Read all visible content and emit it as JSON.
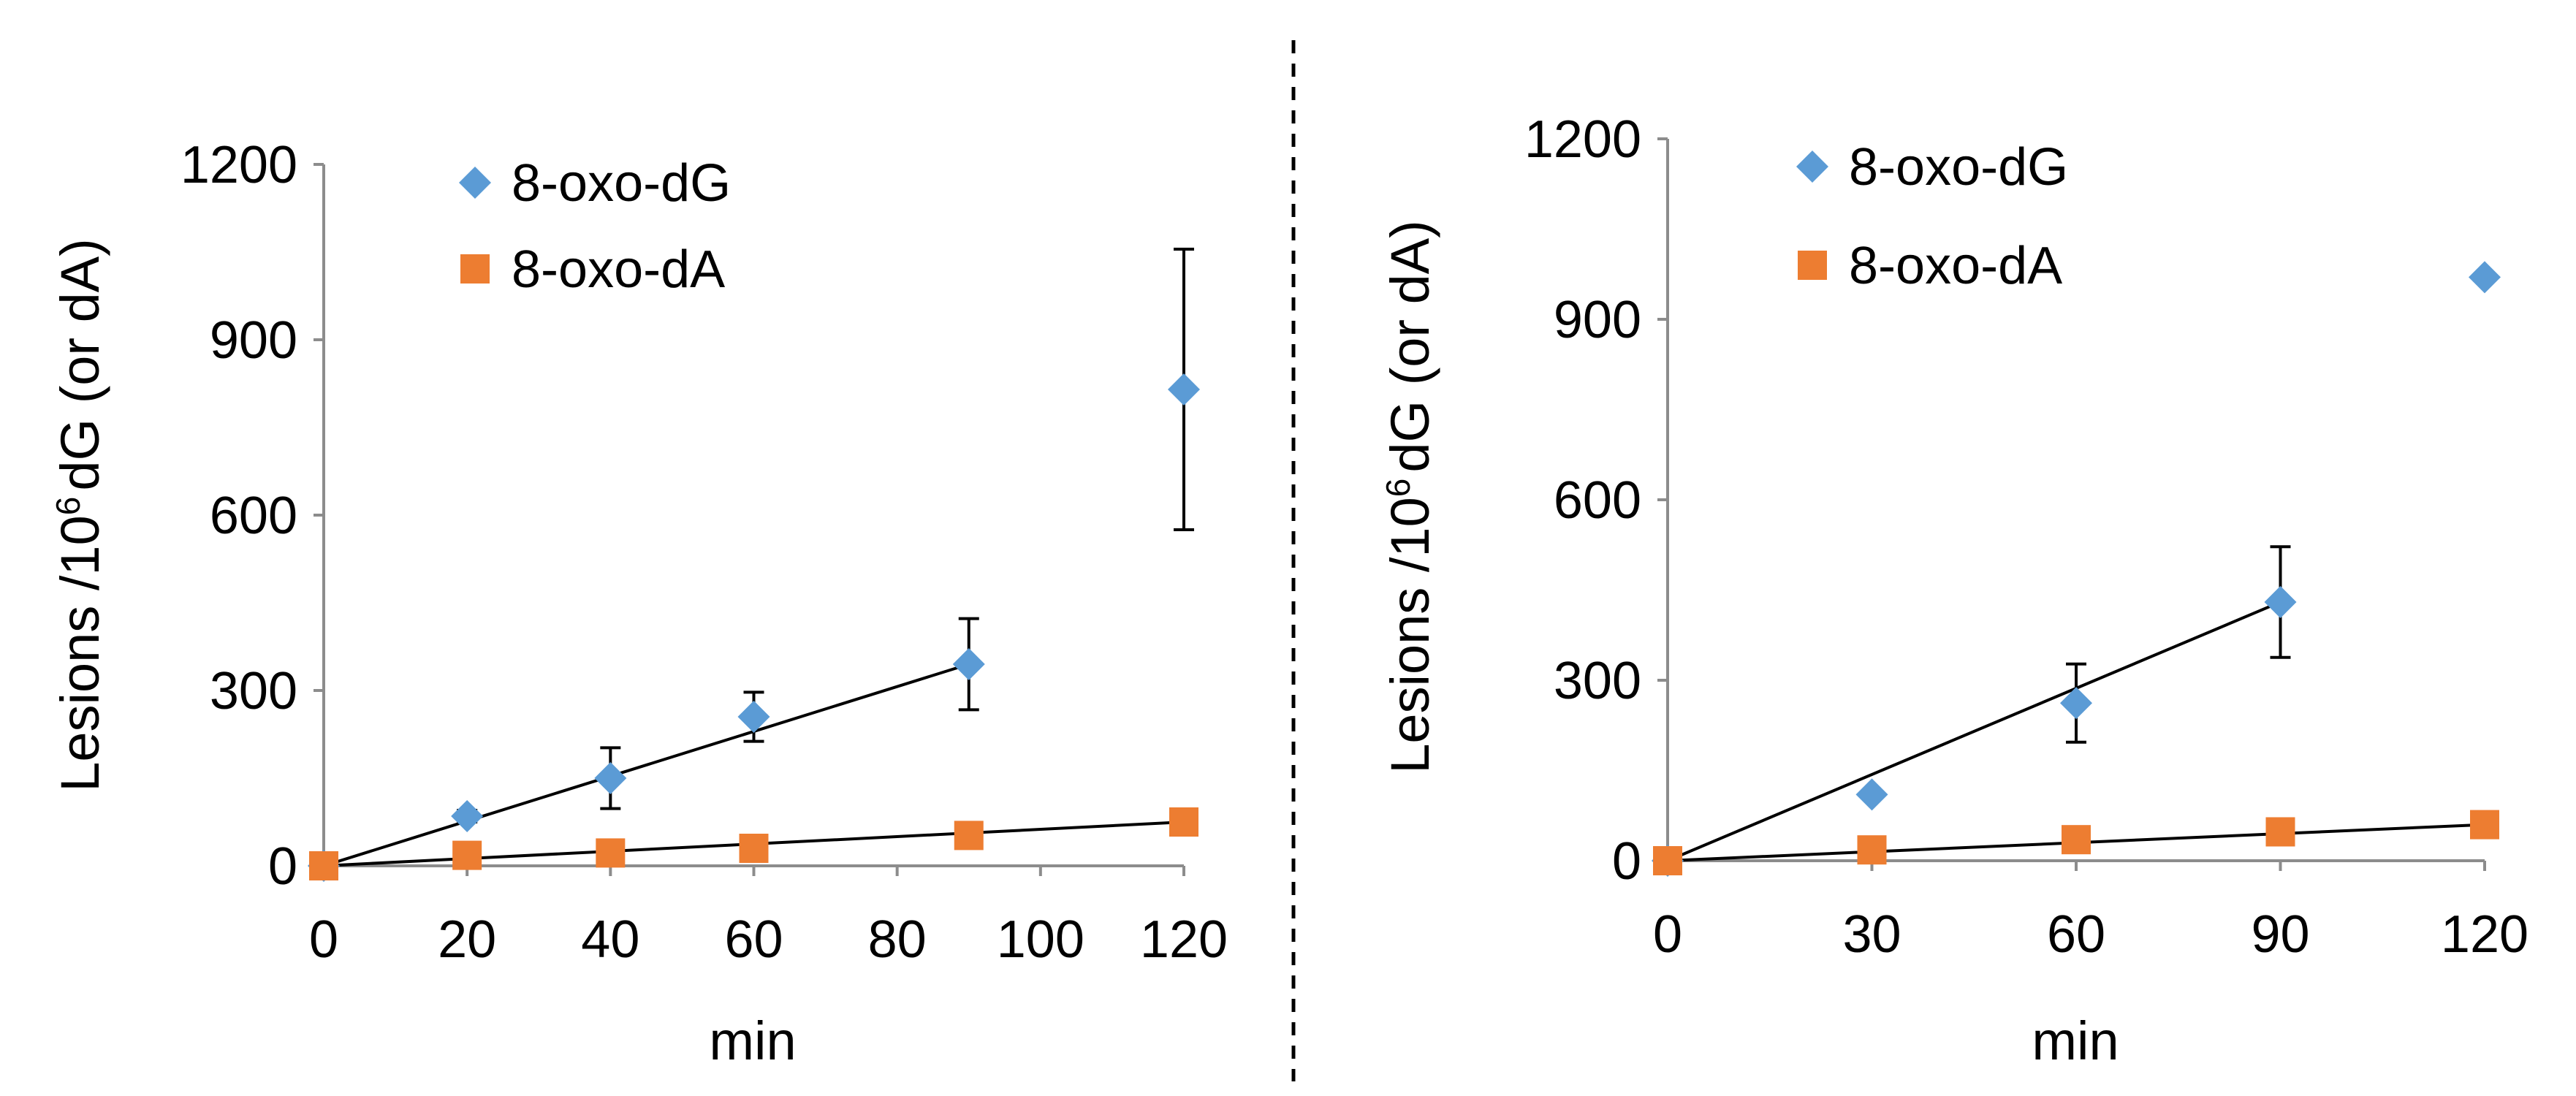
{
  "chart_data": [
    {
      "type": "scatter",
      "ylabel": "Lesions /10⁶ dG (or dA)",
      "ylabel_main": "Lesions /10",
      "ylabel_sup": "6",
      "ylabel_rest": "dG (or dA)",
      "xlabel": "min",
      "xlim": [
        0,
        120
      ],
      "ylim": [
        0,
        1200
      ],
      "xticks": [
        0,
        20,
        40,
        60,
        80,
        100,
        120
      ],
      "xtick_labels": [
        "0",
        "20",
        "40",
        "60",
        "80",
        "100",
        "120"
      ],
      "yticks": [
        0,
        300,
        600,
        900,
        1200
      ],
      "ytick_labels": [
        "0",
        "300",
        "600",
        "900",
        "1200"
      ],
      "legend_position": "top-left",
      "series": [
        {
          "name": "8-oxo-dG",
          "marker": "diamond",
          "color": "#5b9bd5",
          "x": [
            0,
            20,
            40,
            60,
            90,
            120
          ],
          "y": [
            0,
            85,
            150,
            255,
            345,
            815
          ],
          "err": [
            0,
            10,
            52,
            42,
            78,
            240
          ],
          "trend": {
            "x": [
              0,
              90
            ],
            "y": [
              0,
              345
            ]
          }
        },
        {
          "name": "8-oxo-dA",
          "marker": "square",
          "color": "#ed7d31",
          "x": [
            0,
            20,
            40,
            60,
            90,
            120
          ],
          "y": [
            0,
            18,
            22,
            30,
            52,
            75
          ],
          "err": [
            0,
            0,
            0,
            0,
            0,
            0
          ],
          "trend": {
            "x": [
              0,
              120
            ],
            "y": [
              0,
              75
            ]
          }
        }
      ]
    },
    {
      "type": "scatter",
      "ylabel": "Lesions /10⁶ dG (or dA)",
      "ylabel_main": "Lesions /10",
      "ylabel_sup": "6",
      "ylabel_rest": "dG (or dA)",
      "xlabel": "min",
      "xlim": [
        0,
        120
      ],
      "ylim": [
        0,
        1200
      ],
      "xticks": [
        0,
        30,
        60,
        90,
        120
      ],
      "xtick_labels": [
        "0",
        "30",
        "60",
        "90",
        "120"
      ],
      "yticks": [
        0,
        300,
        600,
        900,
        1200
      ],
      "ytick_labels": [
        "0",
        "300",
        "600",
        "900",
        "1200"
      ],
      "legend_position": "top-left",
      "series": [
        {
          "name": "8-oxo-dG",
          "marker": "diamond",
          "color": "#5b9bd5",
          "x": [
            0,
            30,
            60,
            90,
            120
          ],
          "y": [
            0,
            110,
            262,
            430,
            970
          ],
          "err": [
            0,
            0,
            65,
            92,
            0
          ],
          "trend": {
            "x": [
              0,
              90
            ],
            "y": [
              0,
              430
            ]
          }
        },
        {
          "name": "8-oxo-dA",
          "marker": "square",
          "color": "#ed7d31",
          "x": [
            0,
            30,
            60,
            90,
            120
          ],
          "y": [
            0,
            18,
            35,
            48,
            60
          ],
          "err": [
            0,
            0,
            0,
            0,
            0
          ],
          "trend": {
            "x": [
              0,
              120
            ],
            "y": [
              0,
              60
            ]
          }
        }
      ]
    }
  ]
}
